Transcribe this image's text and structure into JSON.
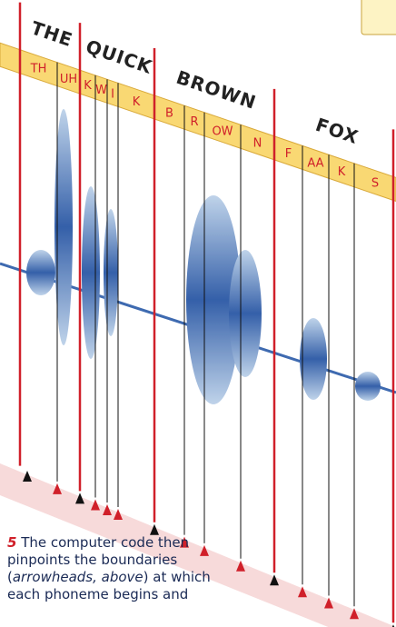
{
  "words": [
    "THE",
    "QUICK",
    "BROWN",
    "FOX"
  ],
  "phonemes": [
    "TH",
    "UH",
    "K",
    "W",
    "I",
    "K",
    "B",
    "R",
    "OW",
    "N",
    "F",
    "AA",
    "K",
    "S"
  ],
  "caption": {
    "number": "5",
    "text_1": "The computer code then pinpoints the boundaries (",
    "emphasis": "arrowheads, above",
    "text_2": ") at which each phoneme begins and"
  }
}
